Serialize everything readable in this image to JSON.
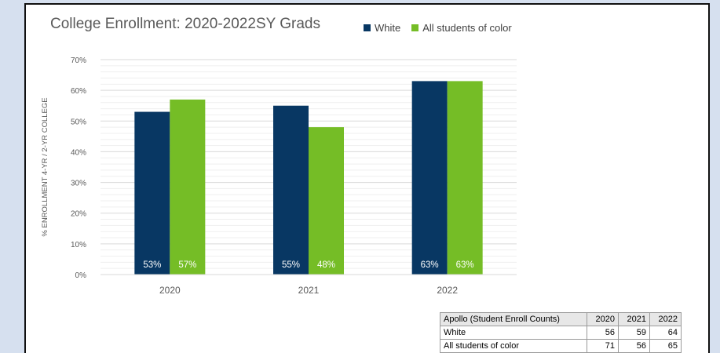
{
  "chart_data": {
    "type": "bar",
    "title": "College Enrollment: 2020-2022SY Grads",
    "ylabel": "% ENROLLMENT 4-YR / 2-YR COLLEGE",
    "xlabel": "",
    "categories": [
      "2020",
      "2021",
      "2022"
    ],
    "series": [
      {
        "name": "White",
        "values": [
          53,
          55,
          63
        ],
        "labels": [
          "53%",
          "55%",
          "63%"
        ],
        "color": "#083763"
      },
      {
        "name": "All students of color",
        "values": [
          57,
          48,
          63
        ],
        "labels": [
          "57%",
          "48%",
          "63%"
        ],
        "color": "#75bd26"
      }
    ],
    "ylim": [
      0,
      70
    ],
    "yticks": [
      "0%",
      "10%",
      "20%",
      "30%",
      "40%",
      "50%",
      "60%",
      "70%"
    ],
    "grid": true,
    "legend": "top"
  },
  "table": {
    "header": [
      "Apollo (Student Enroll Counts)",
      "2020",
      "2021",
      "2022"
    ],
    "rows": [
      [
        "White",
        "56",
        "59",
        "64"
      ],
      [
        "All students of color",
        "71",
        "56",
        "65"
      ]
    ]
  }
}
